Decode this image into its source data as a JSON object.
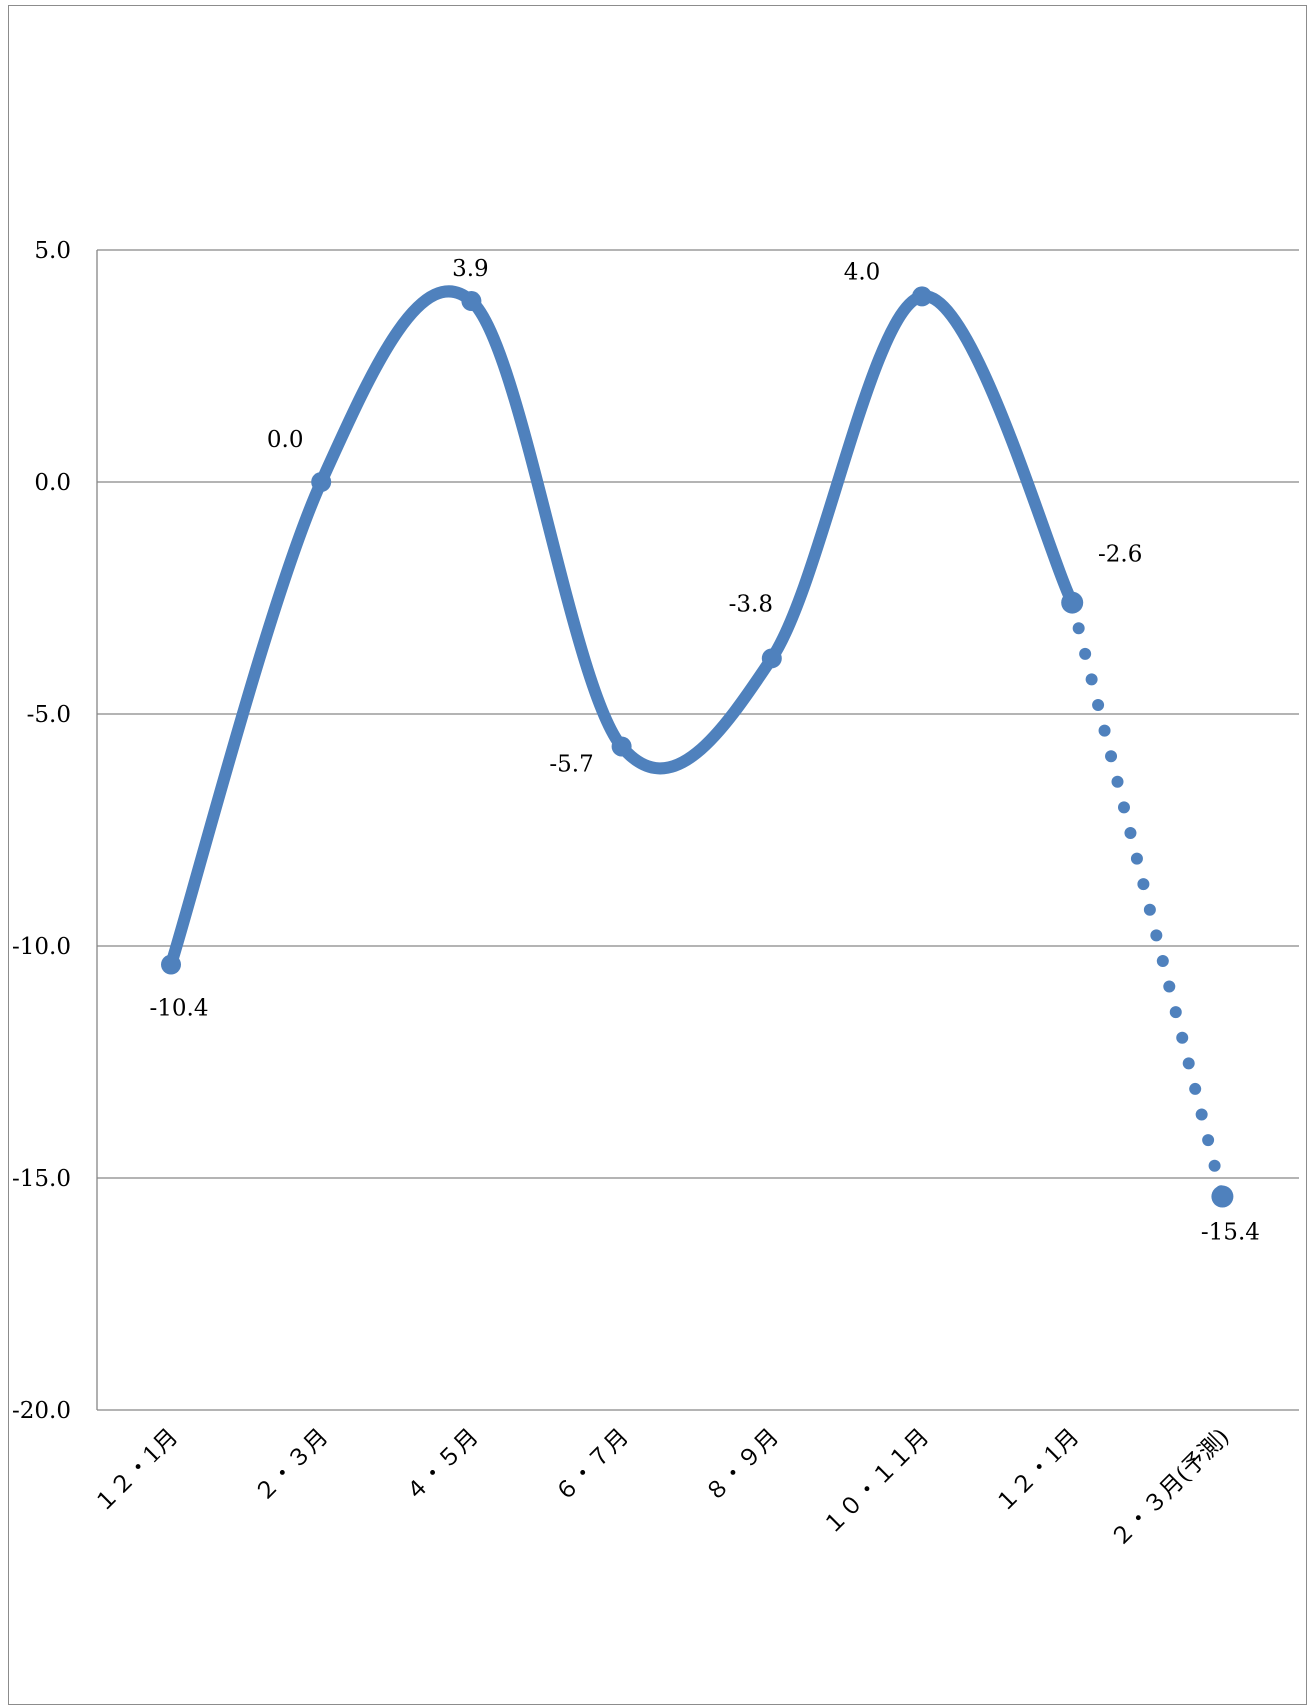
{
  "chart_data": {
    "type": "line",
    "title": "",
    "xlabel": "",
    "ylabel": "",
    "categories": [
      "１２・1月",
      "２・３月",
      "４・５月",
      "６・７月",
      "８・９月",
      "１０・１１月",
      "１２・1月",
      "２・３月(予測)"
    ],
    "series": [
      {
        "values": [
          -10.4,
          0.0,
          3.9,
          -5.7,
          -3.8,
          4.0,
          -2.6,
          -15.4
        ],
        "data_labels": [
          "-10.4",
          "0.0",
          "3.9",
          "-5.7",
          "-3.8",
          "4.0",
          "-2.6",
          "-15.4"
        ],
        "solid_until_index": 6,
        "forecast_style": "dotted",
        "line_style": "smooth",
        "color": "#4f81bd"
      }
    ],
    "ylim": [
      -20,
      5
    ],
    "y_ticks": [
      5,
      0,
      -5,
      -10,
      -15,
      -20
    ],
    "y_tick_labels": [
      "5.0",
      "0.0",
      "-5.0",
      "-10.0",
      "-15.0",
      "-20.0"
    ],
    "grid": true,
    "gridline_color": "#868686",
    "legend": "none"
  }
}
